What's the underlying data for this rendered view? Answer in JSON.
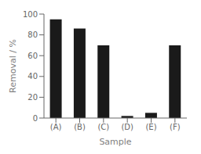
{
  "chart_data": {
    "type": "bar",
    "categories": [
      "(A)",
      "(B)",
      "(C)",
      "(D)",
      "(E)",
      "(F)"
    ],
    "values": [
      95,
      86,
      70,
      2,
      5,
      70
    ],
    "color": "#1a1a1a",
    "xlabel": "Sample",
    "ylabel": "Removal / %",
    "ylim": [
      0,
      100
    ],
    "yticks": [
      0,
      20,
      40,
      60,
      80,
      100
    ],
    "grid": false
  }
}
